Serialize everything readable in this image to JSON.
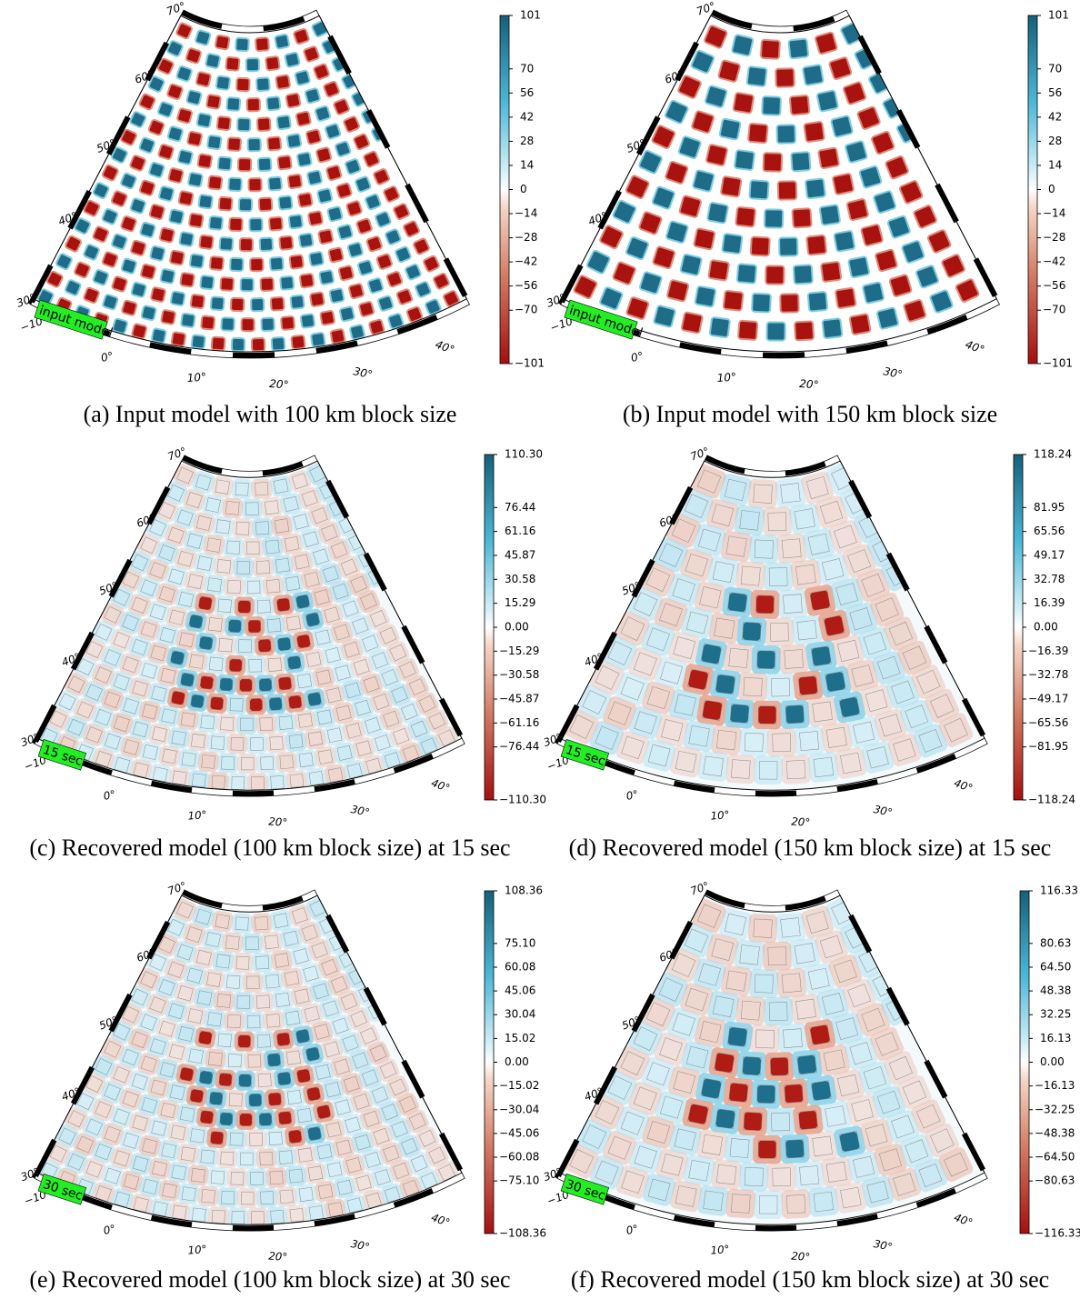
{
  "map_labels": {
    "latitudes": [
      "70°",
      "60°",
      "50°",
      "40°",
      "30°"
    ],
    "longitudes": [
      "−10°",
      "0°",
      "10°",
      "20°",
      "30°",
      "40°"
    ]
  },
  "panels": [
    {
      "caption": "(a) Input model with 100 km block size",
      "label": "input model",
      "colorbar": {
        "ticks": [
          101,
          70,
          56,
          42,
          28,
          14,
          0,
          {
            "value": -14,
            "label": "−14"
          },
          {
            "value": -28,
            "label": "−28"
          },
          {
            "value": -42,
            "label": "−42"
          },
          {
            "value": -56,
            "label": "−56"
          },
          {
            "value": -70,
            "label": "−70"
          },
          {
            "value": -101,
            "label": "−101"
          }
        ]
      }
    },
    {
      "caption": "(b) Input model with 150 km block size",
      "label": "input model",
      "colorbar": {
        "ticks": [
          101,
          70,
          56,
          42,
          28,
          14,
          0,
          {
            "value": -14,
            "label": "−14"
          },
          {
            "value": -28,
            "label": "−28"
          },
          {
            "value": -42,
            "label": "−42"
          },
          {
            "value": -56,
            "label": "−56"
          },
          {
            "value": -70,
            "label": "−70"
          },
          {
            "value": -101,
            "label": "−101"
          }
        ]
      }
    },
    {
      "caption": "(c) Recovered model (100 km block size) at 15 sec",
      "label": "15 sec",
      "colorbar": {
        "ticks": [
          {
            "value": 110.3,
            "label": "110.30"
          },
          76.44,
          61.16,
          45.87,
          30.58,
          15.29,
          {
            "value": 0,
            "label": "0.00"
          },
          {
            "value": -15.29,
            "label": "−15.29"
          },
          {
            "value": -30.58,
            "label": "−30.58"
          },
          {
            "value": -45.87,
            "label": "−45.87"
          },
          {
            "value": -61.16,
            "label": "−61.16"
          },
          {
            "value": -76.44,
            "label": "−76.44"
          },
          {
            "value": -110.3,
            "label": "−110.30"
          }
        ]
      }
    },
    {
      "caption": "(d) Recovered model (150 km block size) at 15 sec",
      "label": "15 sec",
      "colorbar": {
        "ticks": [
          118.24,
          81.95,
          65.56,
          49.17,
          32.78,
          16.39,
          {
            "value": 0,
            "label": "0.00"
          },
          {
            "value": -16.39,
            "label": "−16.39"
          },
          {
            "value": -32.78,
            "label": "−32.78"
          },
          {
            "value": -49.17,
            "label": "−49.17"
          },
          {
            "value": -65.56,
            "label": "−65.56"
          },
          {
            "value": -81.95,
            "label": "−81.95"
          },
          {
            "value": -118.24,
            "label": "−118.24"
          }
        ]
      }
    },
    {
      "caption": "(e) Recovered model (100 km block size) at 30 sec",
      "label": "30 sec",
      "colorbar": {
        "ticks": [
          108.36,
          {
            "value": 75.1,
            "label": "75.10"
          },
          60.08,
          45.06,
          30.04,
          15.02,
          {
            "value": 0,
            "label": "0.00"
          },
          {
            "value": -15.02,
            "label": "−15.02"
          },
          {
            "value": -30.04,
            "label": "−30.04"
          },
          {
            "value": -45.06,
            "label": "−45.06"
          },
          {
            "value": -60.08,
            "label": "−60.08"
          },
          {
            "value": -75.1,
            "label": "−75.10"
          },
          {
            "value": -108.36,
            "label": "−108.36"
          }
        ]
      }
    },
    {
      "caption": "(f) Recovered model (150 km block size) at 30 sec",
      "label": "30 sec",
      "colorbar": {
        "ticks": [
          116.33,
          80.63,
          {
            "value": 64.5,
            "label": "64.50"
          },
          48.38,
          32.25,
          16.13,
          {
            "value": 0,
            "label": "0.00"
          },
          {
            "value": -16.13,
            "label": "−16.13"
          },
          {
            "value": -32.25,
            "label": "−32.25"
          },
          {
            "value": -48.38,
            "label": "−48.38"
          },
          {
            "value": -64.5,
            "label": "−64.50"
          },
          {
            "value": -80.63,
            "label": "−80.63"
          },
          {
            "value": -116.33,
            "label": "−116.33"
          }
        ]
      }
    }
  ]
}
